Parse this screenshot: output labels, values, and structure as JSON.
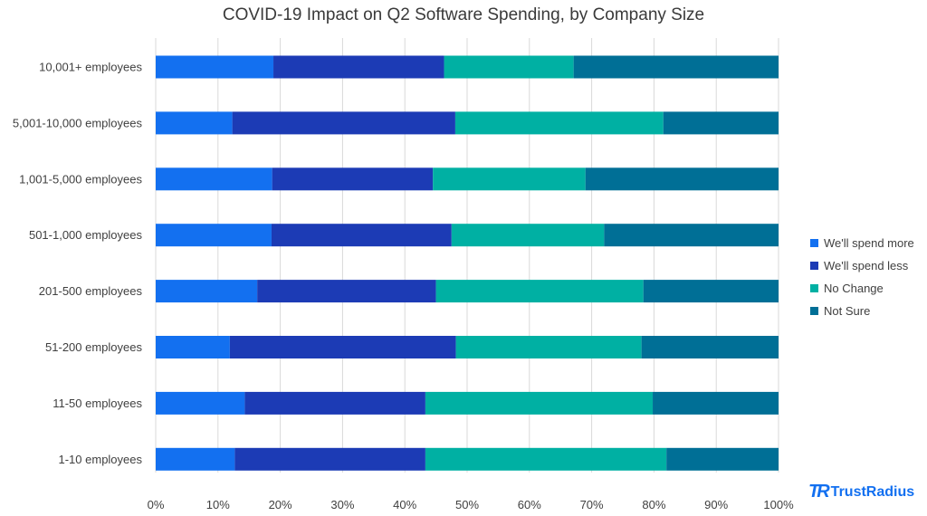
{
  "chart_data": {
    "type": "bar",
    "orientation": "horizontal",
    "stacked": "percent",
    "title": "COVID-19 Impact on Q2 Software Spending, by Company Size",
    "categories": [
      "10,001+ employees",
      "5,001-10,000 employees",
      "1,001-5,000 employees",
      "501-1,000 employees",
      "201-500 employees",
      "51-200 employees",
      "11-50 employees",
      "1-10 employees"
    ],
    "series": [
      {
        "name": "We'll spend more",
        "color": "#1370f0",
        "values": [
          18.9,
          12.3,
          18.7,
          18.6,
          16.3,
          11.9,
          14.3,
          12.7
        ]
      },
      {
        "name": "We'll spend less",
        "color": "#1c3bb5",
        "values": [
          27.4,
          35.8,
          25.8,
          28.9,
          28.7,
          36.3,
          29.0,
          30.6
        ]
      },
      {
        "name": "No Change",
        "color": "#00b0a3",
        "values": [
          20.8,
          33.4,
          24.5,
          24.5,
          33.3,
          29.8,
          36.5,
          38.7
        ]
      },
      {
        "name": "Not Sure",
        "color": "#006f96",
        "values": [
          32.9,
          18.5,
          31.0,
          28.0,
          21.7,
          22.0,
          20.2,
          18.0
        ]
      }
    ],
    "xlim": [
      0,
      100
    ],
    "xticks": [
      "0%",
      "10%",
      "20%",
      "30%",
      "40%",
      "50%",
      "60%",
      "70%",
      "80%",
      "90%",
      "100%"
    ],
    "grid": true,
    "legend_position": "right"
  },
  "brand": {
    "logo_text": "TrustRadius"
  }
}
